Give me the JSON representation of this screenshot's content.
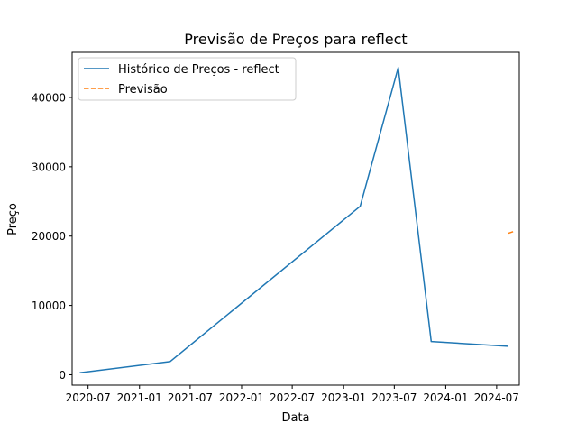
{
  "chart_data": {
    "type": "line",
    "title": "Previsão de Preços para reflect",
    "xlabel": "Data",
    "ylabel": "Preço",
    "x_type": "date",
    "xlim": [
      "2020-05-05",
      "2024-09-20"
    ],
    "ylim": [
      -1500,
      46500
    ],
    "x_ticks": [
      "2020-07-01",
      "2021-01-01",
      "2021-07-01",
      "2022-01-01",
      "2022-07-01",
      "2023-01-01",
      "2023-07-01",
      "2024-01-01",
      "2024-07-01"
    ],
    "x_tick_labels": [
      "2020-07",
      "2021-01",
      "2021-07",
      "2022-01",
      "2022-07",
      "2023-01",
      "2023-07",
      "2024-01",
      "2024-07"
    ],
    "y_ticks": [
      0,
      10000,
      20000,
      30000,
      40000
    ],
    "y_tick_labels": [
      "0",
      "10000",
      "20000",
      "30000",
      "40000"
    ],
    "grid": false,
    "legend_position": "upper-left",
    "series": [
      {
        "name": "Histórico de Preços - reflect",
        "color": "#1f77b4",
        "style": "solid",
        "points": [
          {
            "x": "2020-06-01",
            "y": 300
          },
          {
            "x": "2021-04-20",
            "y": 1900
          },
          {
            "x": "2023-03-01",
            "y": 24300
          },
          {
            "x": "2023-07-15",
            "y": 44300
          },
          {
            "x": "2023-11-10",
            "y": 4800
          },
          {
            "x": "2024-08-10",
            "y": 4100
          }
        ]
      },
      {
        "name": "Previsão",
        "color": "#ff7f0e",
        "style": "dashed",
        "points": [
          {
            "x": "2024-08-12",
            "y": 20400
          },
          {
            "x": "2024-09-05",
            "y": 20750
          }
        ]
      }
    ]
  }
}
